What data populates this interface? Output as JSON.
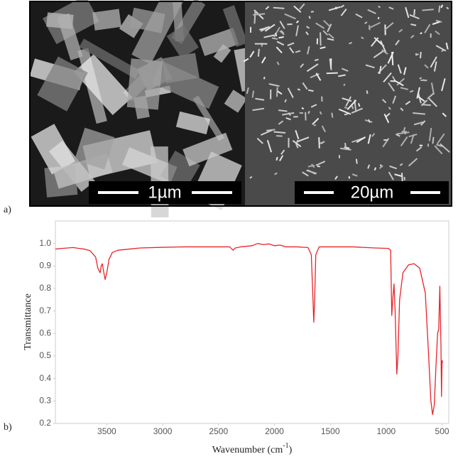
{
  "figure": {
    "panel_labels": [
      "a)",
      "b)"
    ],
    "scale_bars": [
      "1µm",
      "20µm"
    ]
  },
  "chart_data": {
    "type": "line",
    "ylabel": "Transmittance",
    "xlabel": [
      "Wavenumber (cm",
      "-1",
      ")"
    ],
    "x": [
      3960,
      3900,
      3850,
      3800,
      3750,
      3700,
      3650,
      3600,
      3580,
      3560,
      3550,
      3540,
      3530,
      3515,
      3500,
      3480,
      3450,
      3400,
      3300,
      3200,
      3000,
      2800,
      2600,
      2400,
      2370,
      2350,
      2300,
      2200,
      2150,
      2100,
      2050,
      2000,
      1950,
      1900,
      1800,
      1700,
      1670,
      1655,
      1648,
      1640,
      1630,
      1600,
      1500,
      1300,
      1100,
      980,
      960,
      950,
      940,
      930,
      920,
      905,
      895,
      880,
      850,
      800,
      750,
      700,
      650,
      620,
      600,
      585,
      570,
      555,
      540,
      530,
      520,
      510,
      505,
      500,
      495
    ],
    "series": [
      {
        "name": "Transmittance",
        "color": "#e8232a",
        "values": [
          0.975,
          0.978,
          0.98,
          0.982,
          0.978,
          0.975,
          0.968,
          0.94,
          0.89,
          0.87,
          0.9,
          0.91,
          0.88,
          0.84,
          0.87,
          0.93,
          0.96,
          0.97,
          0.975,
          0.98,
          0.983,
          0.985,
          0.985,
          0.985,
          0.97,
          0.98,
          0.985,
          0.99,
          1.0,
          0.995,
          0.998,
          0.99,
          0.993,
          0.985,
          0.985,
          0.982,
          0.95,
          0.75,
          0.65,
          0.75,
          0.95,
          0.985,
          0.985,
          0.985,
          0.98,
          0.978,
          0.97,
          0.68,
          0.76,
          0.82,
          0.7,
          0.42,
          0.5,
          0.75,
          0.87,
          0.905,
          0.91,
          0.89,
          0.78,
          0.5,
          0.3,
          0.24,
          0.28,
          0.45,
          0.6,
          0.62,
          0.81,
          0.55,
          0.32,
          0.48,
          0.47
        ]
      }
    ],
    "xlim": [
      3960,
      440
    ],
    "xticks": [
      3500,
      3000,
      2500,
      2000,
      1500,
      1000,
      500
    ],
    "ylim": [
      0.2,
      1.1
    ],
    "yticks": [
      0.2,
      0.3,
      0.4,
      0.5,
      0.6,
      0.7,
      0.8,
      0.9,
      {
        "value": 1,
        "label": "1.0"
      }
    ]
  }
}
